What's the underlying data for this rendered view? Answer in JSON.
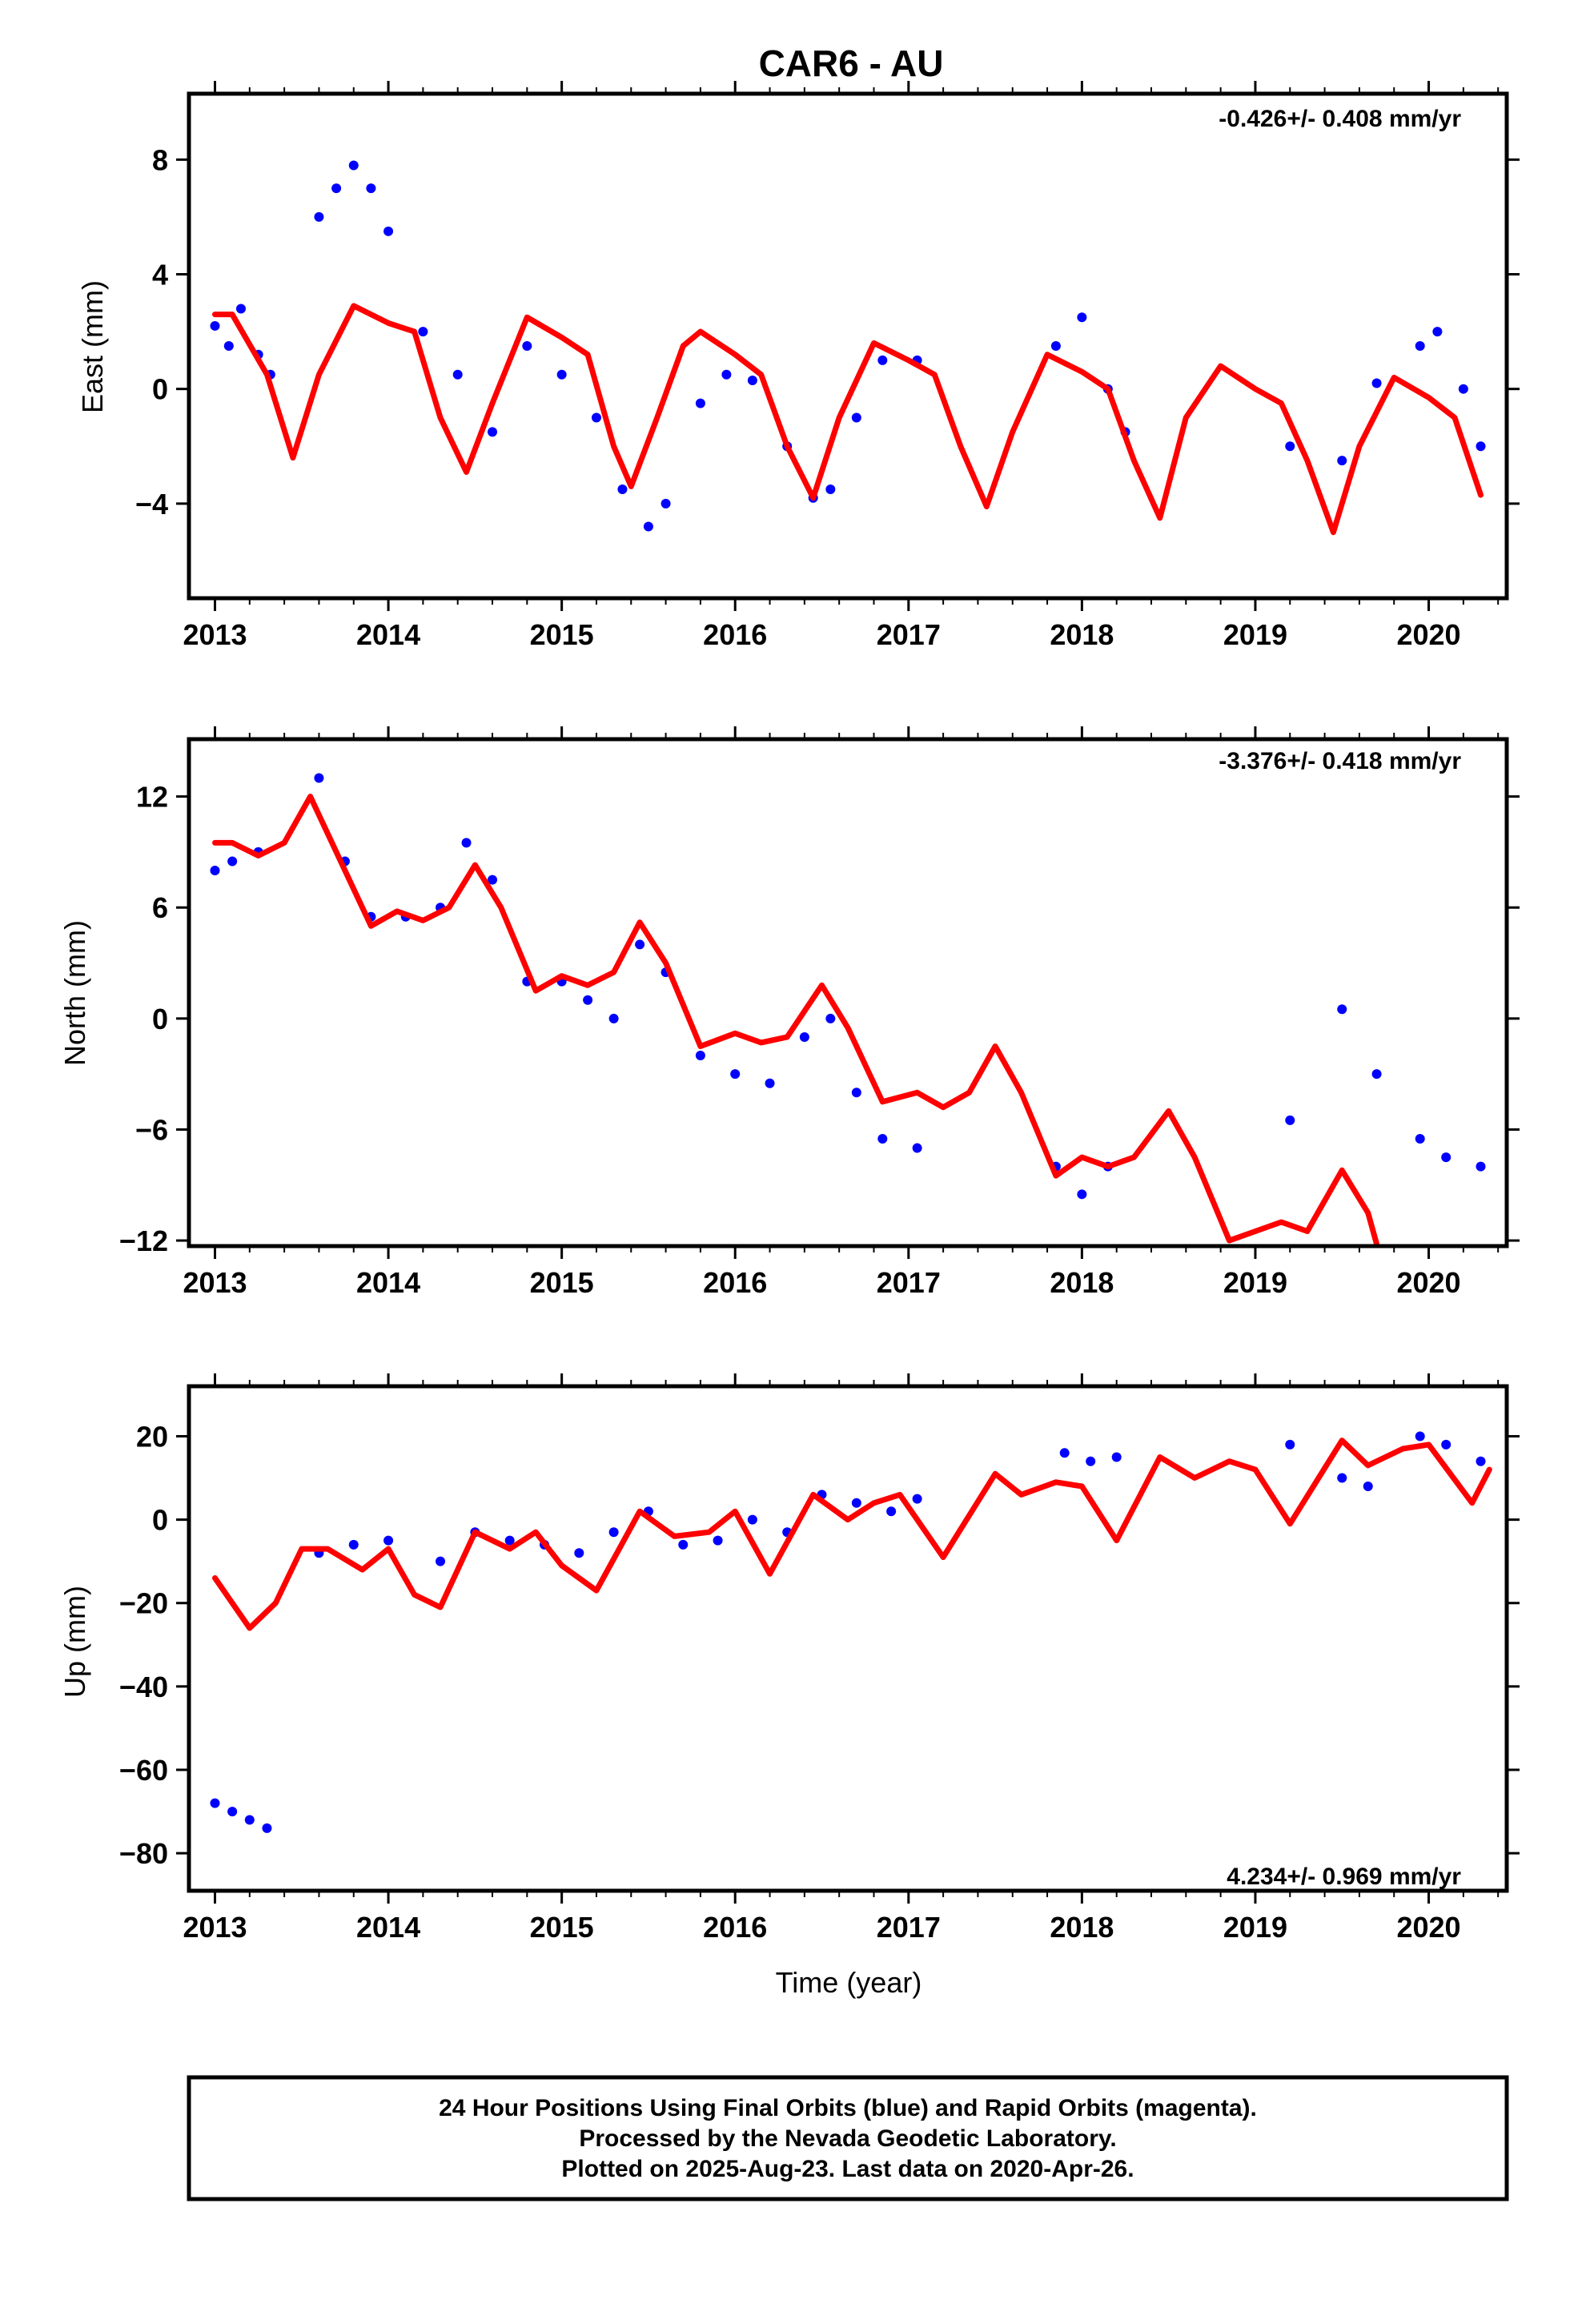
{
  "figure": {
    "title": "CAR6 - AU",
    "xlabel": "Time (year)",
    "footer": [
      "24 Hour Positions Using Final Orbits (blue) and Rapid Orbits (magenta).",
      "Processed by the Nevada Geodetic Laboratory.",
      "Plotted on 2025-Aug-23. Last data on 2020-Apr-26."
    ]
  },
  "colors": {
    "points": "#0000ff",
    "model": "#ff0000",
    "frame": "#000000"
  },
  "chart_data": [
    {
      "type": "scatter",
      "ylabel": "East (mm)",
      "rate": "-0.426+/- 0.408 mm/yr",
      "xlim": [
        2012.85,
        2020.45
      ],
      "ylim": [
        -7.3,
        10.3
      ],
      "xticks": [
        2013,
        2014,
        2015,
        2016,
        2017,
        2018,
        2019,
        2020
      ],
      "yticks": [
        -4,
        0,
        4,
        8
      ],
      "series": [
        {
          "values": [
            [
              2013.0,
              2.2
            ],
            [
              2013.08,
              1.5
            ],
            [
              2013.15,
              2.8
            ],
            [
              2013.25,
              1.2
            ],
            [
              2013.32,
              0.5
            ],
            [
              2013.6,
              6.0
            ],
            [
              2013.7,
              7.0
            ],
            [
              2013.8,
              7.8
            ],
            [
              2013.9,
              7.0
            ],
            [
              2014.0,
              5.5
            ],
            [
              2014.2,
              2.0
            ],
            [
              2014.4,
              0.5
            ],
            [
              2014.6,
              -1.5
            ],
            [
              2014.8,
              1.5
            ],
            [
              2015.0,
              0.5
            ],
            [
              2015.2,
              -1.0
            ],
            [
              2015.35,
              -3.5
            ],
            [
              2015.5,
              -4.8
            ],
            [
              2015.6,
              -4.0
            ],
            [
              2015.8,
              -0.5
            ],
            [
              2015.95,
              0.5
            ],
            [
              2016.1,
              0.3
            ],
            [
              2016.3,
              -2.0
            ],
            [
              2016.45,
              -3.8
            ],
            [
              2016.55,
              -3.5
            ],
            [
              2016.7,
              -1.0
            ],
            [
              2016.85,
              1.0
            ],
            [
              2017.05,
              1.0
            ],
            [
              2017.85,
              1.5
            ],
            [
              2018.0,
              2.5
            ],
            [
              2018.15,
              0.0
            ],
            [
              2018.25,
              -1.5
            ],
            [
              2019.2,
              -2.0
            ],
            [
              2019.5,
              -2.5
            ],
            [
              2019.7,
              0.2
            ],
            [
              2019.95,
              1.5
            ],
            [
              2020.05,
              2.0
            ],
            [
              2020.2,
              0.0
            ],
            [
              2020.3,
              -2.0
            ]
          ]
        },
        {
          "values": [
            [
              2013.0,
              2.6
            ],
            [
              2013.1,
              2.6
            ],
            [
              2013.3,
              0.5
            ],
            [
              2013.45,
              -2.4
            ],
            [
              2013.6,
              0.5
            ],
            [
              2013.8,
              2.9
            ],
            [
              2014.0,
              2.3
            ],
            [
              2014.15,
              2.0
            ],
            [
              2014.3,
              -1.0
            ],
            [
              2014.45,
              -2.9
            ],
            [
              2014.6,
              -0.5
            ],
            [
              2014.8,
              2.5
            ],
            [
              2015.0,
              1.8
            ],
            [
              2015.15,
              1.2
            ],
            [
              2015.3,
              -2.0
            ],
            [
              2015.4,
              -3.4
            ],
            [
              2015.55,
              -1.0
            ],
            [
              2015.7,
              1.5
            ],
            [
              2015.8,
              2.0
            ],
            [
              2016.0,
              1.2
            ],
            [
              2016.15,
              0.5
            ],
            [
              2016.3,
              -2.0
            ],
            [
              2016.45,
              -3.8
            ],
            [
              2016.6,
              -1.0
            ],
            [
              2016.8,
              1.6
            ],
            [
              2017.0,
              1.0
            ],
            [
              2017.15,
              0.5
            ],
            [
              2017.3,
              -2.0
            ],
            [
              2017.45,
              -4.1
            ],
            [
              2017.6,
              -1.5
            ],
            [
              2017.8,
              1.2
            ],
            [
              2018.0,
              0.6
            ],
            [
              2018.15,
              0.0
            ],
            [
              2018.3,
              -2.5
            ],
            [
              2018.45,
              -4.5
            ],
            [
              2018.6,
              -1.0
            ],
            [
              2018.8,
              0.8
            ],
            [
              2019.0,
              0.0
            ],
            [
              2019.15,
              -0.5
            ],
            [
              2019.3,
              -2.5
            ],
            [
              2019.45,
              -5.0
            ],
            [
              2019.6,
              -2.0
            ],
            [
              2019.8,
              0.4
            ],
            [
              2020.0,
              -0.3
            ],
            [
              2020.15,
              -1.0
            ],
            [
              2020.3,
              -3.7
            ]
          ]
        }
      ]
    },
    {
      "type": "scatter",
      "ylabel": "North (mm)",
      "rate": "-3.376+/- 0.418 mm/yr",
      "xlim": [
        2012.85,
        2020.45
      ],
      "ylim": [
        -12.3,
        15.1
      ],
      "xticks": [
        2013,
        2014,
        2015,
        2016,
        2017,
        2018,
        2019,
        2020
      ],
      "yticks": [
        -12,
        -6,
        0,
        6,
        12
      ],
      "series": [
        {
          "values": [
            [
              2013.0,
              8.0
            ],
            [
              2013.1,
              8.5
            ],
            [
              2013.25,
              9.0
            ],
            [
              2013.6,
              13.0
            ],
            [
              2013.75,
              8.5
            ],
            [
              2013.9,
              5.5
            ],
            [
              2014.1,
              5.5
            ],
            [
              2014.3,
              6.0
            ],
            [
              2014.45,
              9.5
            ],
            [
              2014.6,
              7.5
            ],
            [
              2014.8,
              2.0
            ],
            [
              2015.0,
              2.0
            ],
            [
              2015.15,
              1.0
            ],
            [
              2015.3,
              0.0
            ],
            [
              2015.45,
              4.0
            ],
            [
              2015.6,
              2.5
            ],
            [
              2015.8,
              -2.0
            ],
            [
              2016.0,
              -3.0
            ],
            [
              2016.2,
              -3.5
            ],
            [
              2016.4,
              -1.0
            ],
            [
              2016.55,
              0.0
            ],
            [
              2016.7,
              -4.0
            ],
            [
              2016.85,
              -6.5
            ],
            [
              2017.05,
              -7.0
            ],
            [
              2017.85,
              -8.0
            ],
            [
              2018.0,
              -9.5
            ],
            [
              2018.15,
              -8.0
            ],
            [
              2019.2,
              -5.5
            ],
            [
              2019.5,
              0.5
            ],
            [
              2019.7,
              -3.0
            ],
            [
              2019.95,
              -6.5
            ],
            [
              2020.1,
              -7.5
            ],
            [
              2020.3,
              -8.0
            ]
          ]
        },
        {
          "values": [
            [
              2013.0,
              9.5
            ],
            [
              2013.1,
              9.5
            ],
            [
              2013.25,
              8.8
            ],
            [
              2013.4,
              9.5
            ],
            [
              2013.55,
              12.0
            ],
            [
              2013.75,
              8.0
            ],
            [
              2013.9,
              5.0
            ],
            [
              2014.05,
              5.8
            ],
            [
              2014.2,
              5.3
            ],
            [
              2014.35,
              6.0
            ],
            [
              2014.5,
              8.3
            ],
            [
              2014.65,
              6.0
            ],
            [
              2014.85,
              1.5
            ],
            [
              2015.0,
              2.3
            ],
            [
              2015.15,
              1.8
            ],
            [
              2015.3,
              2.5
            ],
            [
              2015.45,
              5.2
            ],
            [
              2015.6,
              3.0
            ],
            [
              2015.8,
              -1.5
            ],
            [
              2016.0,
              -0.8
            ],
            [
              2016.15,
              -1.3
            ],
            [
              2016.3,
              -1.0
            ],
            [
              2016.5,
              1.8
            ],
            [
              2016.65,
              -0.5
            ],
            [
              2016.85,
              -4.5
            ],
            [
              2017.05,
              -4.0
            ],
            [
              2017.2,
              -4.8
            ],
            [
              2017.35,
              -4.0
            ],
            [
              2017.5,
              -1.5
            ],
            [
              2017.65,
              -4.0
            ],
            [
              2017.85,
              -8.5
            ],
            [
              2018.0,
              -7.5
            ],
            [
              2018.15,
              -8.0
            ],
            [
              2018.3,
              -7.5
            ],
            [
              2018.5,
              -5.0
            ],
            [
              2018.65,
              -7.5
            ],
            [
              2018.85,
              -12.0
            ],
            [
              2019.0,
              -11.5
            ],
            [
              2019.15,
              -11.0
            ],
            [
              2019.3,
              -11.5
            ],
            [
              2019.5,
              -8.2
            ],
            [
              2019.65,
              -10.5
            ],
            [
              2019.7,
              -12.2
            ]
          ]
        }
      ]
    },
    {
      "type": "scatter",
      "ylabel": "Up (mm)",
      "rate": "4.234+/- 0.969 mm/yr",
      "xlim": [
        2012.85,
        2020.45
      ],
      "ylim": [
        -89,
        32
      ],
      "xticks": [
        2013,
        2014,
        2015,
        2016,
        2017,
        2018,
        2019,
        2020
      ],
      "yticks": [
        -80,
        -60,
        -40,
        -20,
        0,
        20
      ],
      "series": [
        {
          "values": [
            [
              2013.0,
              -68
            ],
            [
              2013.1,
              -70
            ],
            [
              2013.2,
              -72
            ],
            [
              2013.3,
              -74
            ],
            [
              2013.6,
              -8
            ],
            [
              2013.8,
              -6
            ],
            [
              2014.0,
              -5
            ],
            [
              2014.3,
              -10
            ],
            [
              2014.5,
              -3
            ],
            [
              2014.7,
              -5
            ],
            [
              2014.9,
              -6
            ],
            [
              2015.1,
              -8
            ],
            [
              2015.3,
              -3
            ],
            [
              2015.5,
              2
            ],
            [
              2015.7,
              -6
            ],
            [
              2015.9,
              -5
            ],
            [
              2016.1,
              0
            ],
            [
              2016.3,
              -3
            ],
            [
              2016.5,
              6
            ],
            [
              2016.7,
              4
            ],
            [
              2016.9,
              2
            ],
            [
              2017.05,
              5
            ],
            [
              2017.9,
              16
            ],
            [
              2018.05,
              14
            ],
            [
              2018.2,
              15
            ],
            [
              2019.2,
              18
            ],
            [
              2019.5,
              10
            ],
            [
              2019.65,
              8
            ],
            [
              2019.95,
              20
            ],
            [
              2020.1,
              18
            ],
            [
              2020.3,
              14
            ]
          ]
        },
        {
          "values": [
            [
              2013.0,
              -14
            ],
            [
              2013.2,
              -26
            ],
            [
              2013.35,
              -20
            ],
            [
              2013.5,
              -7
            ],
            [
              2013.65,
              -7
            ],
            [
              2013.85,
              -12
            ],
            [
              2014.0,
              -7
            ],
            [
              2014.15,
              -18
            ],
            [
              2014.3,
              -21
            ],
            [
              2014.5,
              -3
            ],
            [
              2014.7,
              -7
            ],
            [
              2014.85,
              -3
            ],
            [
              2015.0,
              -11
            ],
            [
              2015.2,
              -17
            ],
            [
              2015.45,
              2
            ],
            [
              2015.65,
              -4
            ],
            [
              2015.85,
              -3
            ],
            [
              2016.0,
              2
            ],
            [
              2016.2,
              -13
            ],
            [
              2016.45,
              6
            ],
            [
              2016.65,
              0
            ],
            [
              2016.8,
              4
            ],
            [
              2016.95,
              6
            ],
            [
              2017.2,
              -9
            ],
            [
              2017.5,
              11
            ],
            [
              2017.65,
              6
            ],
            [
              2017.85,
              9
            ],
            [
              2018.0,
              8
            ],
            [
              2018.2,
              -5
            ],
            [
              2018.45,
              15
            ],
            [
              2018.65,
              10
            ],
            [
              2018.85,
              14
            ],
            [
              2019.0,
              12
            ],
            [
              2019.2,
              -1
            ],
            [
              2019.5,
              19
            ],
            [
              2019.65,
              13
            ],
            [
              2019.85,
              17
            ],
            [
              2020.0,
              18
            ],
            [
              2020.25,
              4
            ],
            [
              2020.35,
              12
            ]
          ]
        }
      ]
    }
  ]
}
